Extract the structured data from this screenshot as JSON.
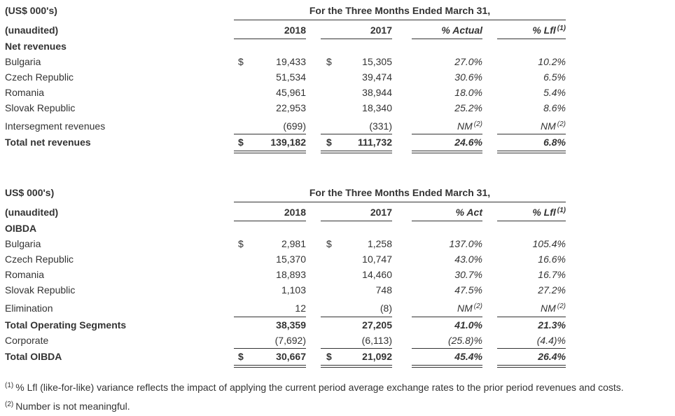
{
  "table1": {
    "label_corner": "(US$ 000's)",
    "title": "For the Three Months Ended March 31,",
    "label_unaudited": "(unaudited)",
    "col_2018": "2018",
    "col_2017": "2017",
    "col_actual": "% Actual",
    "col_lfl": "% Lfl",
    "col_lfl_sup": "(1)",
    "section": "Net revenues",
    "currency": "$",
    "rows": [
      {
        "label": "Bulgaria",
        "v2018": "19,433",
        "v2017": "15,305",
        "actual": "27.0%",
        "lfl": "10.2%"
      },
      {
        "label": "Czech Republic",
        "v2018": "51,534",
        "v2017": "39,474",
        "actual": "30.6%",
        "lfl": "6.5%"
      },
      {
        "label": "Romania",
        "v2018": "45,961",
        "v2017": "38,944",
        "actual": "18.0%",
        "lfl": "5.4%"
      },
      {
        "label": "Slovak Republic",
        "v2018": "22,953",
        "v2017": "18,340",
        "actual": "25.2%",
        "lfl": "8.6%"
      },
      {
        "label": "Intersegment revenues",
        "v2018": "(699)",
        "v2017": "(331)",
        "actual": "NM",
        "actual_sup": "(2)",
        "lfl": "NM",
        "lfl_sup": "(2)"
      }
    ],
    "total": {
      "label": "Total net revenues",
      "v2018": "139,182",
      "v2017": "111,732",
      "actual": "24.6%",
      "lfl": "6.8%"
    }
  },
  "table2": {
    "label_corner": "US$ 000's)",
    "title": "For the Three Months Ended March 31,",
    "label_unaudited": "(unaudited)",
    "col_2018": "2018",
    "col_2017": "2017",
    "col_actual": "% Act",
    "col_lfl": "% Lfl",
    "col_lfl_sup": "(1)",
    "section": "OIBDA",
    "currency": "$",
    "rows": [
      {
        "label": "Bulgaria",
        "v2018": "2,981",
        "v2017": "1,258",
        "actual": "137.0%",
        "lfl": "105.4%"
      },
      {
        "label": "Czech Republic",
        "v2018": "15,370",
        "v2017": "10,747",
        "actual": "43.0%",
        "lfl": "16.6%"
      },
      {
        "label": "Romania",
        "v2018": "18,893",
        "v2017": "14,460",
        "actual": "30.7%",
        "lfl": "16.7%"
      },
      {
        "label": "Slovak Republic",
        "v2018": "1,103",
        "v2017": "748",
        "actual": "47.5%",
        "lfl": "27.2%"
      },
      {
        "label": "Elimination",
        "v2018": "12",
        "v2017": "(8)",
        "actual": "NM",
        "actual_sup": "(2)",
        "lfl": "NM",
        "lfl_sup": "(2)"
      }
    ],
    "subtotal": {
      "label": "Total Operating Segments",
      "v2018": "38,359",
      "v2017": "27,205",
      "actual": "41.0%",
      "lfl": "21.3%"
    },
    "corporate": {
      "label": "Corporate",
      "v2018": "(7,692)",
      "v2017": "(6,113)",
      "actual": "(25.8)%",
      "lfl": "(4.4)%"
    },
    "total": {
      "label": "Total OIBDA",
      "v2018": "30,667",
      "v2017": "21,092",
      "actual": "45.4%",
      "lfl": "26.4%"
    }
  },
  "footnotes": [
    {
      "marker": "(1)",
      "text": "% Lfl (like-for-like) variance reflects the impact of applying the current period average exchange rates to the prior period revenues and costs."
    },
    {
      "marker": "(2)",
      "text": "Number is not meaningful."
    }
  ]
}
